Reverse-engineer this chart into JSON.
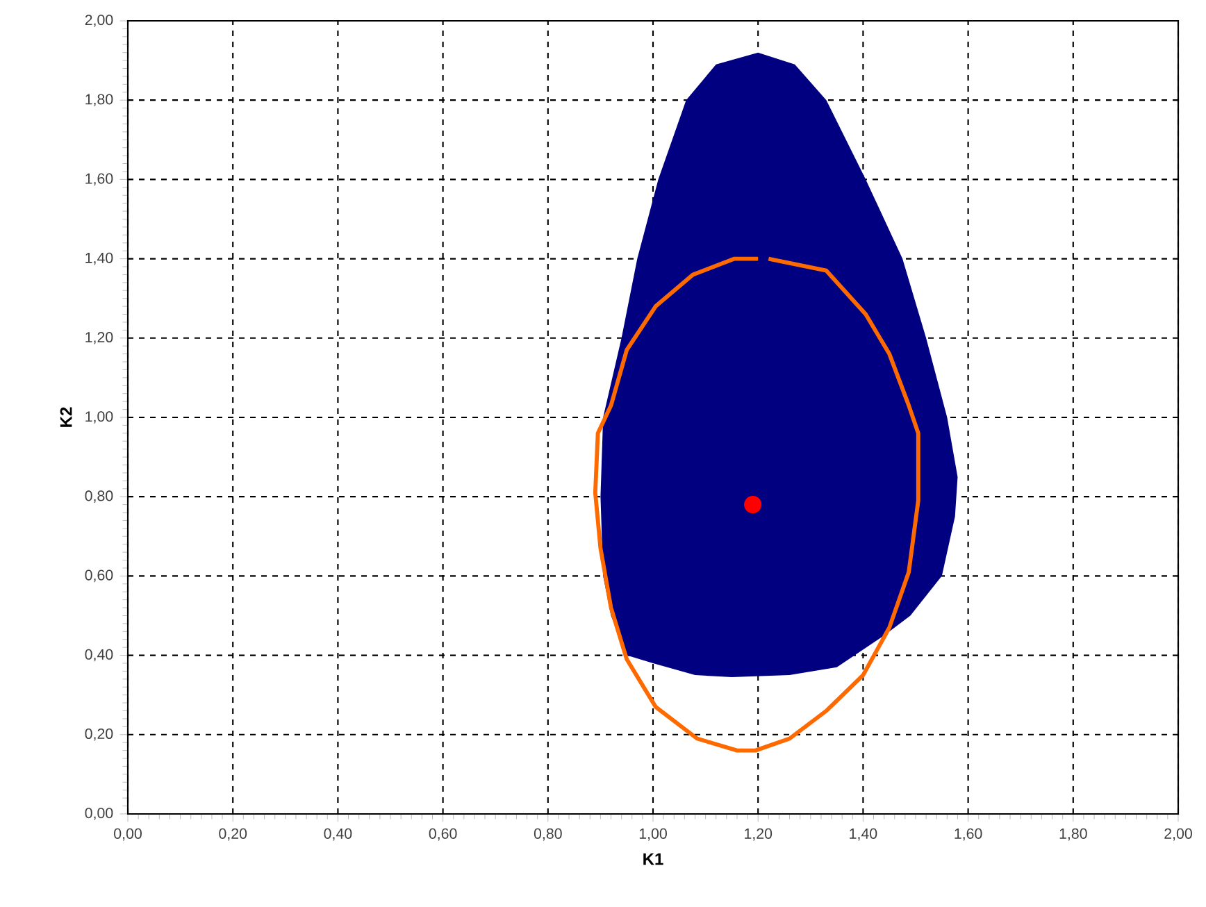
{
  "chart_data": {
    "type": "scatter",
    "xlabel": "K1",
    "ylabel": "K2",
    "xlim": [
      0,
      2
    ],
    "ylim": [
      0,
      2
    ],
    "xticks": [
      {
        "value": 0,
        "label": "0,00"
      },
      {
        "value": 0.2,
        "label": "0,20"
      },
      {
        "value": 0.4,
        "label": "0,40"
      },
      {
        "value": 0.6,
        "label": "0,60"
      },
      {
        "value": 0.8,
        "label": "0,80"
      },
      {
        "value": 1.0,
        "label": "1,00"
      },
      {
        "value": 1.2,
        "label": "1,20"
      },
      {
        "value": 1.4,
        "label": "1,40"
      },
      {
        "value": 1.6,
        "label": "1,60"
      },
      {
        "value": 1.8,
        "label": "1,80"
      },
      {
        "value": 2.0,
        "label": "2,00"
      }
    ],
    "yticks": [
      {
        "value": 0,
        "label": "0,00"
      },
      {
        "value": 0.2,
        "label": "0,20"
      },
      {
        "value": 0.4,
        "label": "0,40"
      },
      {
        "value": 0.6,
        "label": "0,60"
      },
      {
        "value": 0.8,
        "label": "0,80"
      },
      {
        "value": 1.0,
        "label": "1,00"
      },
      {
        "value": 1.2,
        "label": "1,20"
      },
      {
        "value": 1.4,
        "label": "1,40"
      },
      {
        "value": 1.6,
        "label": "1,60"
      },
      {
        "value": 1.8,
        "label": "1,80"
      },
      {
        "value": 2.0,
        "label": "2,00"
      }
    ],
    "grid": true,
    "series": [
      {
        "type": "area",
        "color": "#000080",
        "x": [
          1.2,
          1.27,
          1.33,
          1.405,
          1.475,
          1.52,
          1.56,
          1.58,
          1.575,
          1.55,
          1.49,
          1.44,
          1.35,
          1.26,
          1.15,
          1.08,
          1.0,
          0.95,
          0.92,
          0.905,
          0.9,
          0.905,
          0.94,
          0.97,
          1.01,
          1.063,
          1.12
        ],
        "values": [
          1.92,
          1.89,
          1.8,
          1.6,
          1.4,
          1.2,
          1.0,
          0.85,
          0.75,
          0.6,
          0.5,
          0.45,
          0.37,
          0.35,
          0.345,
          0.35,
          0.38,
          0.4,
          0.5,
          0.6,
          0.8,
          1.0,
          1.2,
          1.4,
          1.6,
          1.8,
          1.89
        ]
      },
      {
        "type": "line",
        "color": "#ff6a00",
        "line_style": "solid",
        "x": [
          1.22,
          1.33,
          1.405,
          1.45,
          1.487,
          1.505,
          1.505,
          1.487,
          1.45,
          1.4,
          1.33,
          1.26,
          1.195,
          1.16,
          1.084,
          1.005,
          0.95,
          0.92,
          0.9,
          0.89,
          0.895,
          0.92,
          0.95,
          1.005,
          1.076,
          1.155,
          1.2
        ],
        "values": [
          1.4,
          1.37,
          1.26,
          1.16,
          1.03,
          0.96,
          0.79,
          0.61,
          0.47,
          0.35,
          0.26,
          0.19,
          0.16,
          0.16,
          0.19,
          0.27,
          0.39,
          0.52,
          0.67,
          0.81,
          0.96,
          1.03,
          1.17,
          1.28,
          1.36,
          1.4,
          1.4
        ]
      },
      {
        "color": "#ff0000",
        "marker": "circle",
        "x": [
          1.19
        ],
        "values": [
          0.78
        ]
      }
    ]
  }
}
